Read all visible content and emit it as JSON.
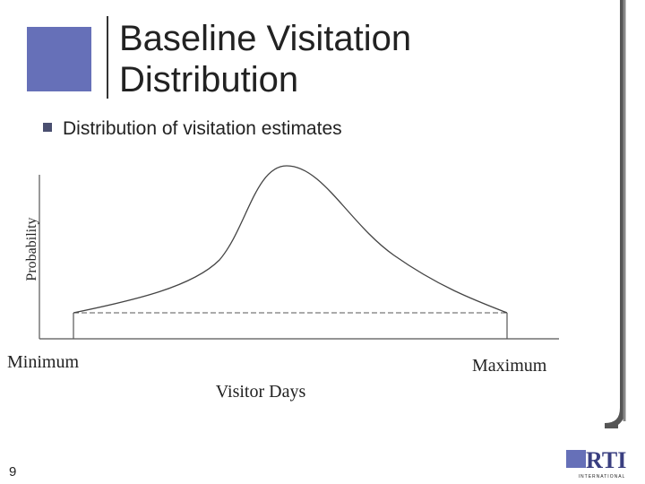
{
  "slide": {
    "title": [
      "Baseline Visitation",
      "Distribution"
    ],
    "bullets": [
      "Distribution of visitation estimates"
    ],
    "figure": {
      "y_label": "Probability",
      "min_label": "Minimum",
      "max_label": "Maximum",
      "x_label": "Visitor Days"
    },
    "page_number": "9",
    "logo": {
      "name": "RTI",
      "subtitle": "INTERNATIONAL"
    }
  }
}
